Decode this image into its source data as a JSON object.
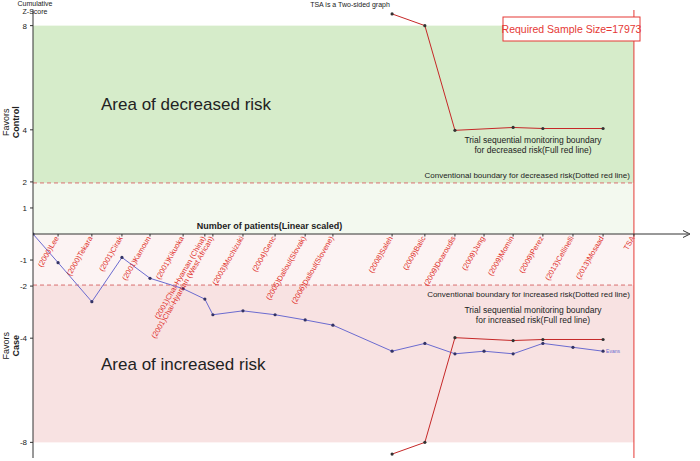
{
  "chart_data": {
    "type": "line",
    "title": "TSA is a Two-sided graph",
    "xlabel": "Number of patients(Linear scaled)",
    "ylabel": "Cumulative Z-Score",
    "xlim": [
      0,
      19650
    ],
    "ylim": [
      -8.6,
      8.6
    ],
    "xticks": [
      {
        "value": 750,
        "label": "(2000)Lee"
      },
      {
        "value": 1760,
        "label": "(2000)Tekara"
      },
      {
        "value": 2660,
        "label": "(2001)Cirak"
      },
      {
        "value": 3500,
        "label": "(2001)Kamoun"
      },
      {
        "value": 4490,
        "label": "(2001)Kikuoka"
      },
      {
        "value": 5140,
        "label": "(2001)Chai-Hyaman (China)"
      },
      {
        "value": 5380,
        "label": "(2001)Chai-Hyaman (West African)"
      },
      {
        "value": 6280,
        "label": "(2003)Mochizuki"
      },
      {
        "value": 7240,
        "label": "(2004)Genc"
      },
      {
        "value": 8140,
        "label": "(2005)Dalloul(Slovak)"
      },
      {
        "value": 8970,
        "label": "(2006)Dalloul(Slovene)"
      },
      {
        "value": 10740,
        "label": "(2008)Saleh"
      },
      {
        "value": 11720,
        "label": "(2009)Balic"
      },
      {
        "value": 12620,
        "label": "(2009)Dearoudis"
      },
      {
        "value": 13490,
        "label": "(2009)Jung"
      },
      {
        "value": 14360,
        "label": "(2009)Momin"
      },
      {
        "value": 15250,
        "label": "(2009)Perez"
      },
      {
        "value": 16150,
        "label": "(2013)Cellinelli"
      },
      {
        "value": 17050,
        "label": "(2013)Mosaad"
      },
      {
        "value": 17973,
        "label": "TSA"
      }
    ],
    "yticks": [
      -8,
      -4,
      -2,
      -1,
      1,
      2,
      4,
      8
    ],
    "grid": false,
    "series": [
      {
        "name": "Evans",
        "type": "line",
        "color": "#6b6bd0",
        "marker": "dot",
        "line_style": "solid",
        "x": [
          0,
          750,
          1760,
          2660,
          3500,
          4490,
          5140,
          5380,
          6280,
          7240,
          8140,
          8970,
          10740,
          11720,
          12620,
          13490,
          14360,
          15250,
          16150,
          17050
        ],
        "values": [
          0,
          -1.1,
          -2.6,
          -0.9,
          -1.7,
          -2.1,
          -2.5,
          -3.1,
          -2.95,
          -3.1,
          -3.3,
          -3.5,
          -4.5,
          -4.2,
          -4.6,
          -4.5,
          -4.6,
          -4.2,
          -4.35,
          -4.5
        ]
      },
      {
        "name": "Trial sequential monitoring boundary for decreased risk(Full red line)",
        "type": "boundary",
        "color": "#c62828",
        "marker": "dot",
        "line_style": "solid",
        "x": [
          10740,
          11720,
          12620,
          14360,
          15250,
          17050
        ],
        "values": [
          8.45,
          8.0,
          3.98,
          4.09,
          4.05,
          4.05
        ]
      },
      {
        "name": "Trial sequential monitoring boundary for increased risk(Full red line)",
        "type": "boundary",
        "color": "#c62828",
        "marker": "dot",
        "line_style": "solid",
        "x": [
          10740,
          11720,
          12620,
          14360,
          15250,
          17050
        ],
        "values": [
          -8.45,
          -8.0,
          -3.98,
          -4.09,
          -4.05,
          -4.05
        ]
      }
    ],
    "reference_lines": [
      {
        "value": 1.96,
        "label": "Conventional boundary for decreased risk(Dotted red line)",
        "color": "#d97070",
        "line_style": "dashed"
      },
      {
        "value": -1.96,
        "label": "Conventional boundary for increased risk(Dotted red line)",
        "color": "#d97070",
        "line_style": "dashed"
      }
    ],
    "regions": [
      {
        "from": 1.96,
        "to": 8,
        "label": "Area of decreased risk",
        "color": "#d6ecca"
      },
      {
        "from": 0,
        "to": 1.96,
        "color": "#f3f9ef"
      },
      {
        "from": -1.96,
        "to": 0,
        "color": "#fcf3f3"
      },
      {
        "from": -8,
        "to": -1.96,
        "label": "Area of increased risk",
        "color": "#f8e2e2"
      }
    ],
    "side_labels": [
      [
        "Favors",
        "Control"
      ],
      [
        "Favors",
        "Case"
      ]
    ],
    "required_sample_size": {
      "value": 17973,
      "label": "Required Sample Size=17973",
      "color": "#e53935"
    }
  }
}
